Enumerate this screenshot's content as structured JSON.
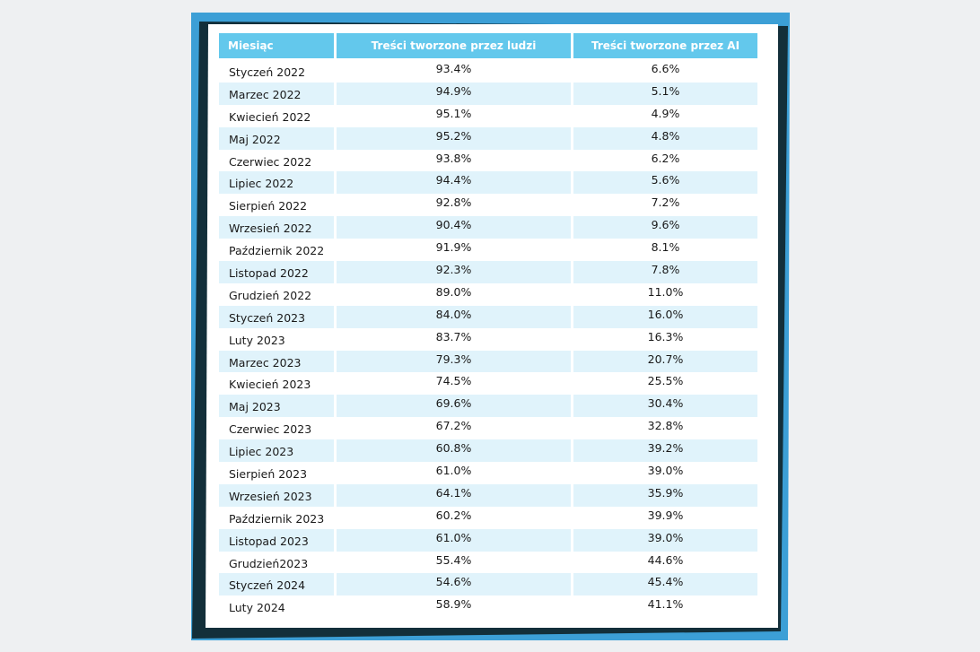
{
  "colors": {
    "page_background": "#eef0f2",
    "frame_dark": "#132f3a",
    "frame_accent": "#3c9fd6",
    "header_background": "#63c8ec",
    "stripe_background": "#e0f3fb"
  },
  "table": {
    "headers": {
      "month": "Miesiąc",
      "human": "Treści tworzone przez ludzi",
      "ai": "Treści tworzone przez AI"
    },
    "rows": [
      {
        "month": "Styczeń 2022",
        "human": "93.4%",
        "ai": "6.6%"
      },
      {
        "month": "Marzec 2022",
        "human": "94.9%",
        "ai": "5.1%"
      },
      {
        "month": "Kwiecień 2022",
        "human": "95.1%",
        "ai": "4.9%"
      },
      {
        "month": "Maj 2022",
        "human": "95.2%",
        "ai": "4.8%"
      },
      {
        "month": "Czerwiec 2022",
        "human": "93.8%",
        "ai": "6.2%"
      },
      {
        "month": "Lipiec 2022",
        "human": "94.4%",
        "ai": "5.6%"
      },
      {
        "month": "Sierpień 2022",
        "human": "92.8%",
        "ai": "7.2%"
      },
      {
        "month": "Wrzesień 2022",
        "human": "90.4%",
        "ai": "9.6%"
      },
      {
        "month": "Październik 2022",
        "human": "91.9%",
        "ai": "8.1%"
      },
      {
        "month": "Listopad 2022",
        "human": "92.3%",
        "ai": "7.8%"
      },
      {
        "month": "Grudzień 2022",
        "human": "89.0%",
        "ai": "11.0%"
      },
      {
        "month": "Styczeń 2023",
        "human": "84.0%",
        "ai": "16.0%"
      },
      {
        "month": "Luty  2023",
        "human": "83.7%",
        "ai": "16.3%"
      },
      {
        "month": "Marzec 2023",
        "human": "79.3%",
        "ai": "20.7%"
      },
      {
        "month": "Kwiecień 2023",
        "human": "74.5%",
        "ai": "25.5%"
      },
      {
        "month": "Maj 2023",
        "human": "69.6%",
        "ai": "30.4%"
      },
      {
        "month": "Czerwiec 2023",
        "human": "67.2%",
        "ai": "32.8%"
      },
      {
        "month": "Lipiec 2023",
        "human": "60.8%",
        "ai": "39.2%"
      },
      {
        "month": "Sierpień 2023",
        "human": "61.0%",
        "ai": "39.0%"
      },
      {
        "month": "Wrzesień 2023",
        "human": "64.1%",
        "ai": "35.9%"
      },
      {
        "month": "Październik 2023",
        "human": "60.2%",
        "ai": "39.9%"
      },
      {
        "month": "Listopad 2023",
        "human": "61.0%",
        "ai": "39.0%"
      },
      {
        "month": "Grudzień2023",
        "human": "55.4%",
        "ai": "44.6%"
      },
      {
        "month": "Styczeń 2024",
        "human": "54.6%",
        "ai": "45.4%"
      },
      {
        "month": "Luty 2024",
        "human": "58.9%",
        "ai": "41.1%"
      }
    ]
  }
}
